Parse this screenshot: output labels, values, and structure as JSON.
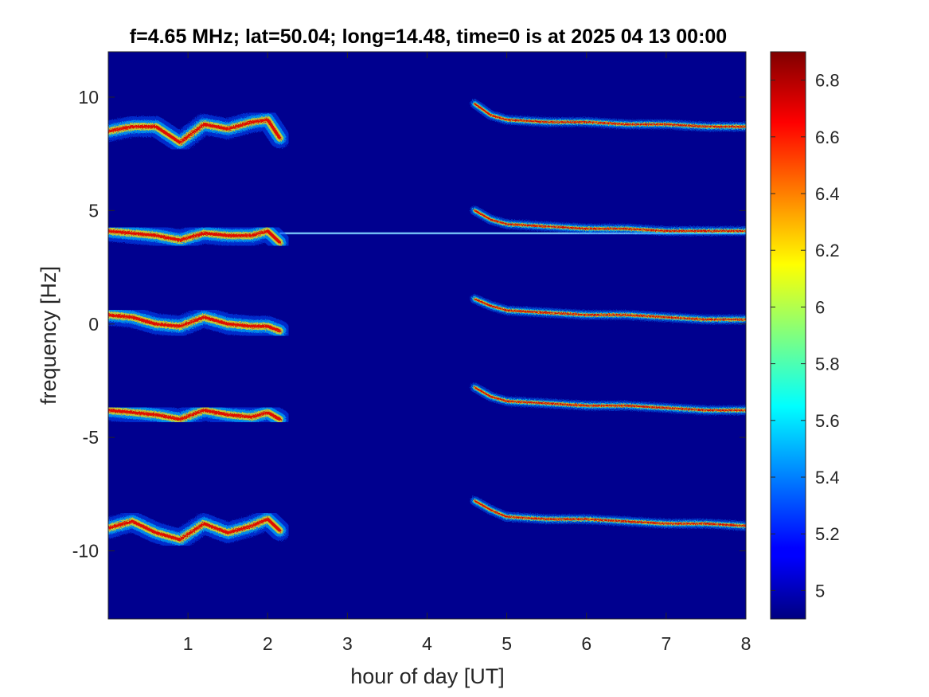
{
  "chart_data": {
    "type": "heatmap",
    "title": "f=4.65 MHz;  lat=50.04; long=14.48, time=0 is at 2025 04 13 00:00",
    "xlabel": "hour of day [UT]",
    "ylabel": "frequency [Hz]",
    "xlim": [
      0,
      8
    ],
    "ylim": [
      -13,
      12
    ],
    "xticks": [
      1,
      2,
      3,
      4,
      5,
      6,
      7,
      8
    ],
    "xtick_labels": [
      "1",
      "2",
      "3",
      "4",
      "5",
      "6",
      "7",
      "8"
    ],
    "yticks": [
      10,
      5,
      0,
      -5,
      -10
    ],
    "ytick_labels": [
      "10",
      "5",
      "0",
      "-5",
      "-10"
    ],
    "colorbar": {
      "colormap": "jet",
      "range": [
        4.9,
        6.9
      ],
      "ticks": [
        6.8,
        6.6,
        6.4,
        6.2,
        6,
        5.8,
        5.6,
        5.4,
        5.2,
        5
      ],
      "tick_labels": [
        "6.8",
        "6.6",
        "6.4",
        "6.2",
        "6",
        "5.8",
        "5.6",
        "5.4",
        "5.2",
        "5"
      ]
    },
    "background_value": 4.9,
    "carrier_line": {
      "freq": 4,
      "x_start": 2.15,
      "x_end": 8
    },
    "traces": [
      {
        "segment": "night",
        "x": [
          0,
          0.3,
          0.6,
          0.9,
          1.2,
          1.5,
          1.8,
          2.0,
          2.15
        ],
        "y": [
          8.5,
          8.7,
          8.7,
          8.0,
          8.8,
          8.6,
          8.9,
          9.0,
          8.2
        ]
      },
      {
        "segment": "night",
        "x": [
          0,
          0.3,
          0.6,
          0.9,
          1.2,
          1.5,
          1.8,
          2.0,
          2.15
        ],
        "y": [
          4.1,
          4.0,
          3.9,
          3.7,
          4.0,
          3.9,
          3.9,
          4.1,
          3.6
        ]
      },
      {
        "segment": "night",
        "x": [
          0,
          0.3,
          0.6,
          0.9,
          1.2,
          1.5,
          1.8,
          2.0,
          2.15
        ],
        "y": [
          0.4,
          0.3,
          0.0,
          -0.1,
          0.3,
          0.0,
          -0.1,
          -0.1,
          -0.3
        ]
      },
      {
        "segment": "night",
        "x": [
          0,
          0.3,
          0.6,
          0.9,
          1.2,
          1.5,
          1.8,
          2.0,
          2.15
        ],
        "y": [
          -3.8,
          -3.9,
          -4.0,
          -4.2,
          -3.8,
          -4.0,
          -4.1,
          -3.9,
          -4.2
        ]
      },
      {
        "segment": "night",
        "x": [
          0,
          0.3,
          0.6,
          0.9,
          1.2,
          1.5,
          1.8,
          2.0,
          2.15
        ],
        "y": [
          -9.0,
          -8.7,
          -9.2,
          -9.5,
          -8.8,
          -9.2,
          -8.9,
          -8.6,
          -9.1
        ]
      },
      {
        "segment": "day",
        "x": [
          4.6,
          4.8,
          5.0,
          5.5,
          6.0,
          6.5,
          7.0,
          7.5,
          8.0
        ],
        "y": [
          9.7,
          9.2,
          9.0,
          8.9,
          8.9,
          8.8,
          8.8,
          8.7,
          8.7
        ]
      },
      {
        "segment": "day",
        "x": [
          4.6,
          4.8,
          5.0,
          5.5,
          6.0,
          6.5,
          7.0,
          7.5,
          8.0
        ],
        "y": [
          5.0,
          4.6,
          4.4,
          4.3,
          4.2,
          4.2,
          4.1,
          4.1,
          4.1
        ]
      },
      {
        "segment": "day",
        "x": [
          4.6,
          4.8,
          5.0,
          5.5,
          6.0,
          6.5,
          7.0,
          7.5,
          8.0
        ],
        "y": [
          1.1,
          0.8,
          0.6,
          0.5,
          0.4,
          0.4,
          0.3,
          0.2,
          0.2
        ]
      },
      {
        "segment": "day",
        "x": [
          4.6,
          4.8,
          5.0,
          5.5,
          6.0,
          6.5,
          7.0,
          7.5,
          8.0
        ],
        "y": [
          -2.8,
          -3.2,
          -3.4,
          -3.5,
          -3.6,
          -3.6,
          -3.7,
          -3.8,
          -3.8
        ]
      },
      {
        "segment": "day",
        "x": [
          4.6,
          4.8,
          5.0,
          5.5,
          6.0,
          6.5,
          7.0,
          7.5,
          8.0
        ],
        "y": [
          -7.8,
          -8.2,
          -8.5,
          -8.6,
          -8.6,
          -8.7,
          -8.8,
          -8.8,
          -8.9
        ]
      }
    ]
  }
}
